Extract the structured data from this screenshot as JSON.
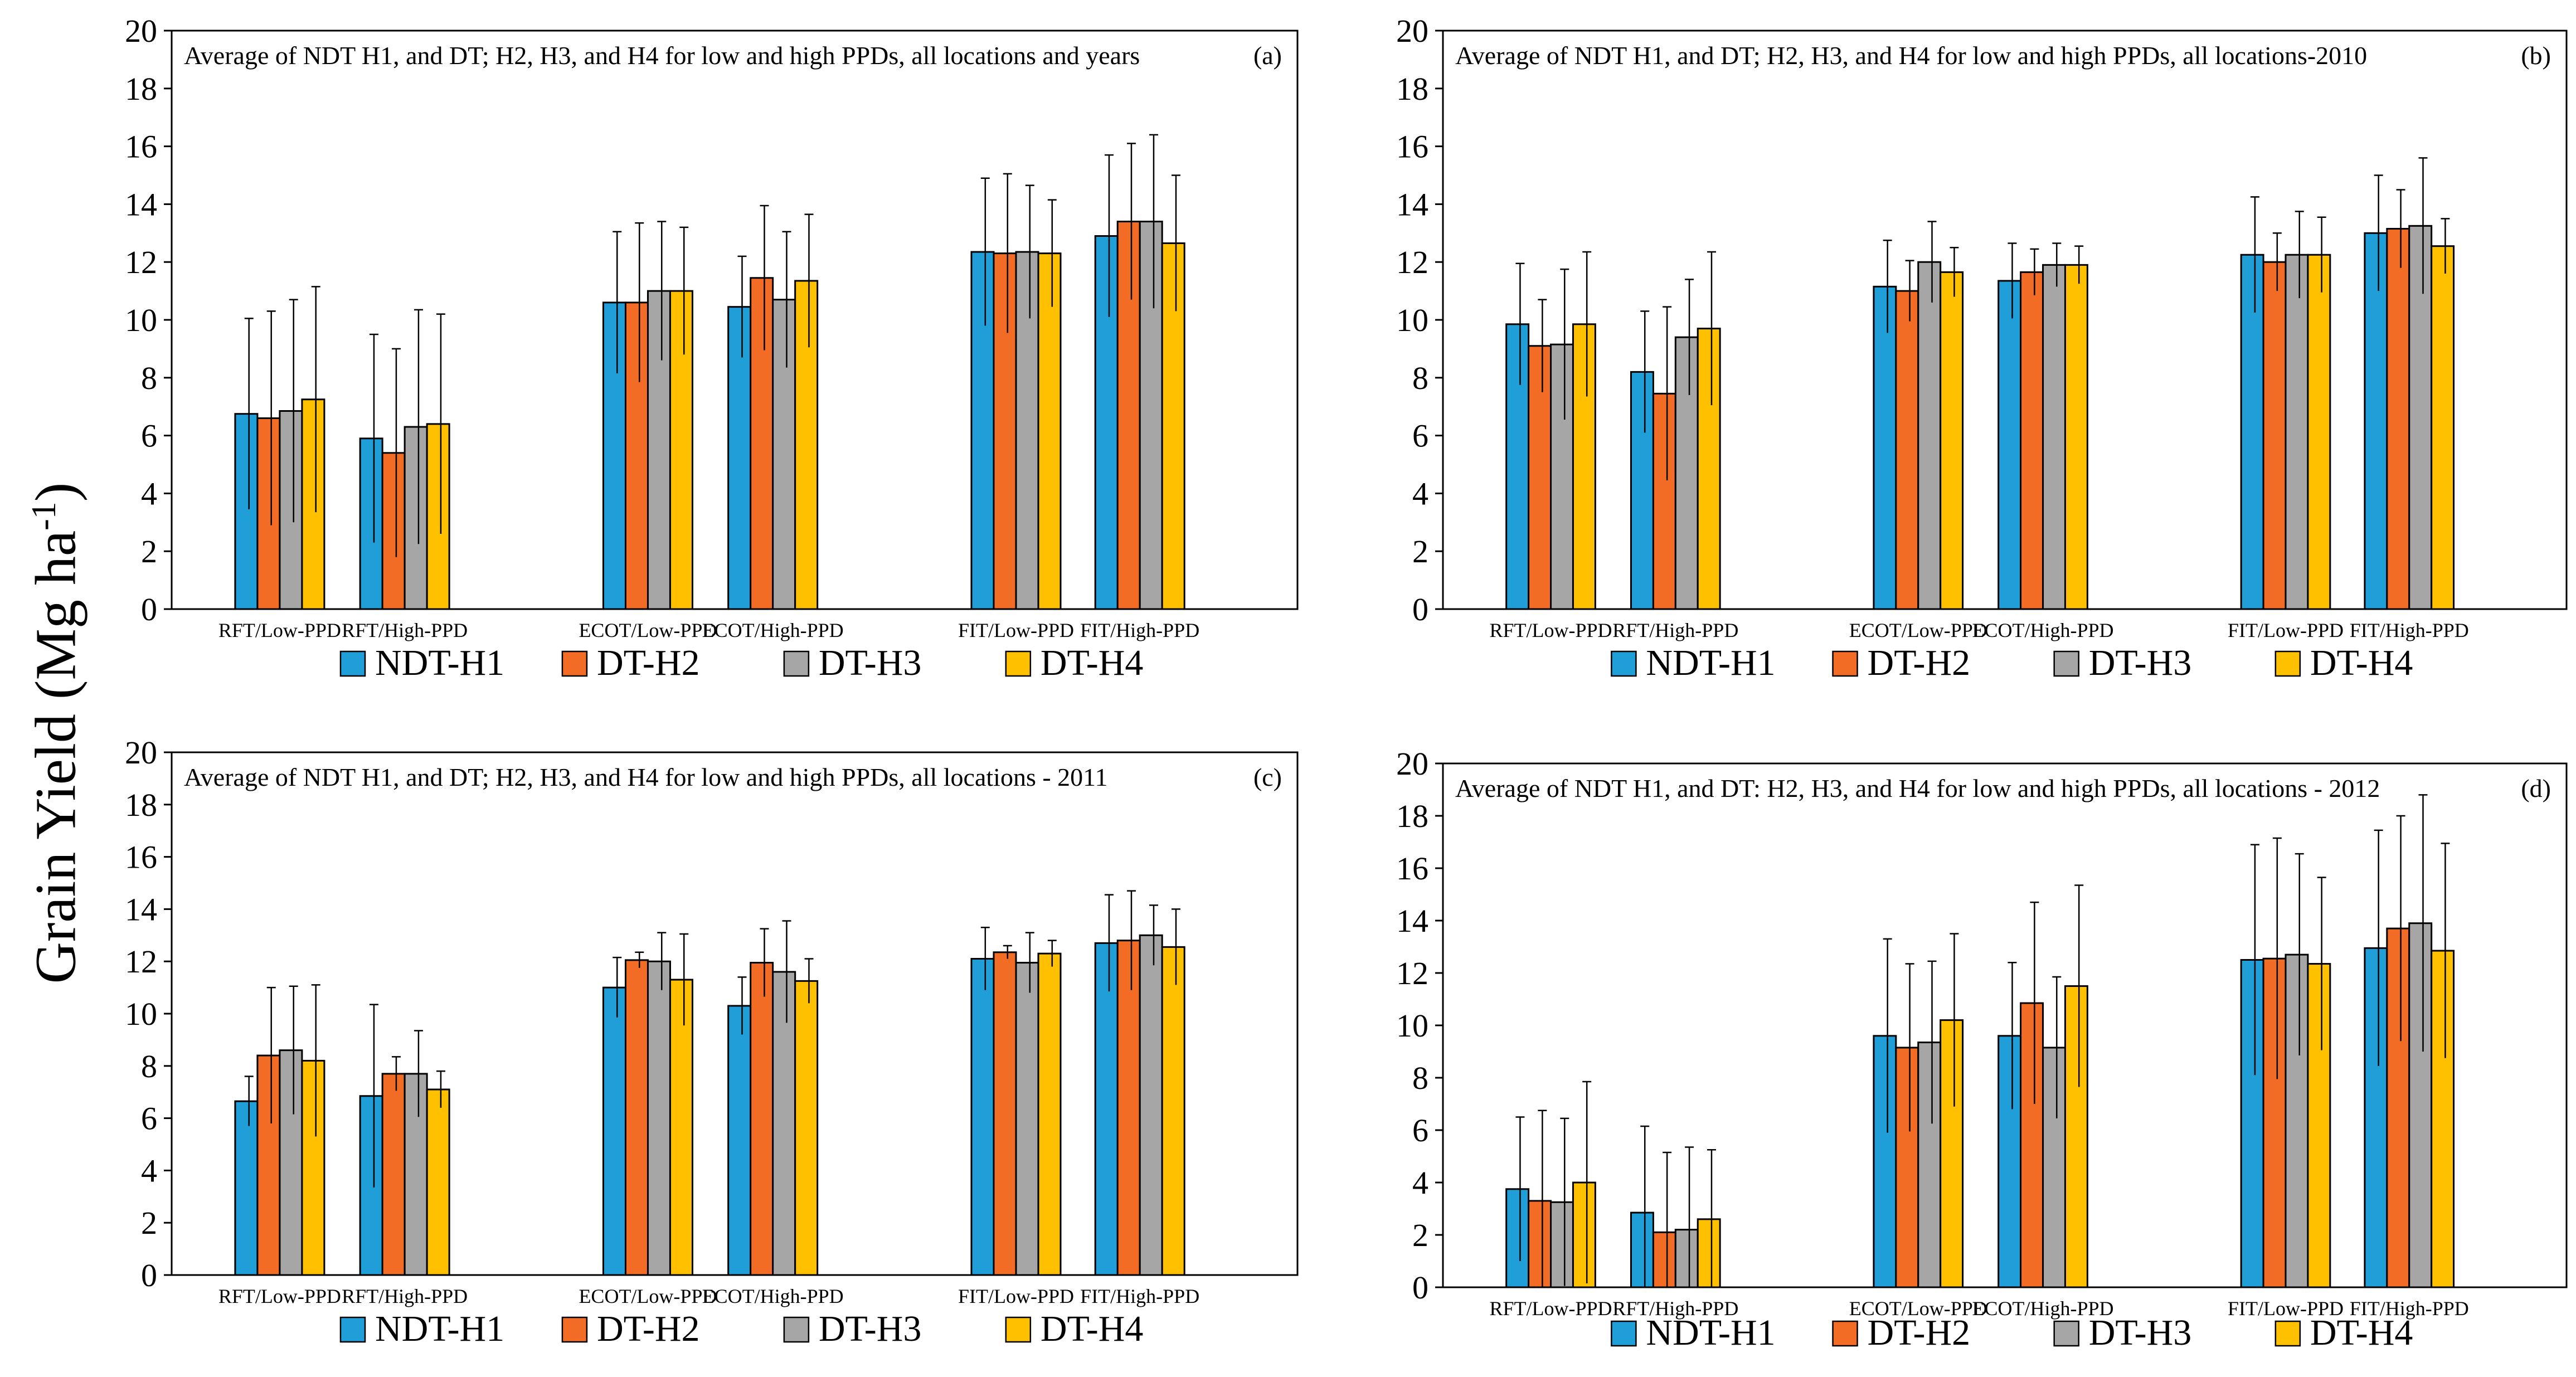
{
  "y_axis_label": {
    "text": "Grain Yield (Mg ha",
    "sup": "-1",
    "close": ")"
  },
  "chart_data": [
    {
      "type": "bar",
      "title": "Average of NDT H1, and DT; H2, H3, and H4 for low and high PPDs, all locations and years",
      "panel_tag": "(a)",
      "xlabel": "",
      "ylabel": "Grain Yield (Mg ha-1)",
      "ylim": [
        0,
        20
      ],
      "y_ticks": [
        0,
        2,
        4,
        6,
        8,
        10,
        12,
        14,
        16,
        18,
        20
      ],
      "categories": [
        "RFT/Low-PPD",
        "RFT/High-PPD",
        "ECOT/Low-PPD",
        "ECOT/High-PPD",
        "FIT/Low-PPD",
        "FIT/High-PPD"
      ],
      "series": [
        {
          "name": "NDT-H1",
          "color": "#1F9ED8",
          "values": [
            6.75,
            5.9,
            10.6,
            10.45,
            12.35,
            12.9
          ],
          "errors": [
            3.3,
            3.6,
            2.45,
            1.75,
            2.55,
            2.8
          ]
        },
        {
          "name": "DT-H2",
          "color": "#F26C25",
          "values": [
            6.6,
            5.4,
            10.6,
            11.45,
            12.3,
            13.4
          ],
          "errors": [
            3.7,
            3.6,
            2.75,
            2.5,
            2.75,
            2.7
          ]
        },
        {
          "name": "DT-H3",
          "color": "#A6A6A6",
          "values": [
            6.85,
            6.3,
            11.0,
            10.7,
            12.35,
            13.4
          ],
          "errors": [
            3.85,
            4.05,
            2.4,
            2.35,
            2.3,
            3.0
          ]
        },
        {
          "name": "DT-H4",
          "color": "#FFC000",
          "values": [
            7.25,
            6.4,
            11.0,
            11.35,
            12.3,
            12.65
          ],
          "errors": [
            3.9,
            3.8,
            2.2,
            2.3,
            1.85,
            2.35
          ]
        }
      ],
      "grid": false,
      "legend": "bottom"
    },
    {
      "type": "bar",
      "title": "Average of NDT H1, and DT; H2, H3, and H4 for low and high PPDs, all locations-2010",
      "panel_tag": "(b)",
      "xlabel": "",
      "ylabel": "Grain Yield (Mg ha-1)",
      "ylim": [
        0,
        20
      ],
      "y_ticks": [
        0,
        2,
        4,
        6,
        8,
        10,
        12,
        14,
        16,
        18,
        20
      ],
      "categories": [
        "RFT/Low-PPD",
        "RFT/High-PPD",
        "ECOT/Low-PPD",
        "ECOT/High-PPD",
        "FIT/Low-PPD",
        "FIT/High-PPD"
      ],
      "series": [
        {
          "name": "NDT-H1",
          "color": "#1F9ED8",
          "values": [
            9.85,
            8.2,
            11.15,
            11.35,
            12.25,
            13.0
          ],
          "errors": [
            2.1,
            2.1,
            1.6,
            1.3,
            2.0,
            2.0
          ]
        },
        {
          "name": "DT-H2",
          "color": "#F26C25",
          "values": [
            9.1,
            7.45,
            11.0,
            11.65,
            12.0,
            13.15
          ],
          "errors": [
            1.6,
            3.0,
            1.05,
            0.8,
            1.0,
            1.35
          ]
        },
        {
          "name": "DT-H3",
          "color": "#A6A6A6",
          "values": [
            9.15,
            9.4,
            12.0,
            11.9,
            12.25,
            13.25
          ],
          "errors": [
            2.6,
            2.0,
            1.4,
            0.75,
            1.5,
            2.35
          ]
        },
        {
          "name": "DT-H4",
          "color": "#FFC000",
          "values": [
            9.85,
            9.7,
            11.65,
            11.9,
            12.25,
            12.55
          ],
          "errors": [
            2.5,
            2.65,
            0.85,
            0.65,
            1.3,
            0.95
          ]
        }
      ],
      "grid": false,
      "legend": "bottom"
    },
    {
      "type": "bar",
      "title": "Average of NDT H1, and DT; H2, H3, and H4 for low and high PPDs, all locations - 2011",
      "panel_tag": "(c)",
      "xlabel": "",
      "ylabel": "Grain Yield (Mg ha-1)",
      "ylim": [
        0,
        20
      ],
      "y_ticks": [
        0,
        2,
        4,
        6,
        8,
        10,
        12,
        14,
        16,
        18,
        20
      ],
      "categories": [
        "RFT/Low-PPD",
        "RFT/High-PPD",
        "ECOT/Low-PPD",
        "ECOT/High-PPD",
        "FIT/Low-PPD",
        "FIT/High-PPD"
      ],
      "series": [
        {
          "name": "NDT-H1",
          "color": "#1F9ED8",
          "values": [
            6.65,
            6.85,
            11.0,
            10.3,
            12.1,
            12.7
          ],
          "errors": [
            0.95,
            3.5,
            1.15,
            1.1,
            1.2,
            1.85
          ]
        },
        {
          "name": "DT-H2",
          "color": "#F26C25",
          "values": [
            8.4,
            7.7,
            12.05,
            11.95,
            12.35,
            12.8
          ],
          "errors": [
            2.6,
            0.65,
            0.3,
            1.3,
            0.25,
            1.9
          ]
        },
        {
          "name": "DT-H3",
          "color": "#A6A6A6",
          "values": [
            8.6,
            7.7,
            12.0,
            11.6,
            11.95,
            13.0
          ],
          "errors": [
            2.45,
            1.65,
            1.1,
            1.95,
            1.15,
            1.15
          ]
        },
        {
          "name": "DT-H4",
          "color": "#FFC000",
          "values": [
            8.2,
            7.1,
            11.3,
            11.25,
            12.3,
            12.55
          ],
          "errors": [
            2.9,
            0.7,
            1.75,
            0.85,
            0.5,
            1.45
          ]
        }
      ],
      "grid": false,
      "legend": "bottom"
    },
    {
      "type": "bar",
      "title": "Average of NDT H1, and DT: H2, H3, and H4 for low and high PPDs, all locations - 2012",
      "panel_tag": "(d)",
      "xlabel": "",
      "ylabel": "Grain Yield (Mg ha-1)",
      "ylim": [
        0,
        20
      ],
      "y_ticks": [
        0,
        2,
        4,
        6,
        8,
        10,
        12,
        14,
        16,
        18,
        20
      ],
      "categories": [
        "RFT/Low-PPD",
        "RFT/High-PPD",
        "ECOT/Low-PPD",
        "ECOT/High-PPD",
        "FIT/Low-PPD",
        "FIT/High-PPD"
      ],
      "series": [
        {
          "name": "NDT-H1",
          "color": "#1F9ED8",
          "values": [
            3.75,
            2.85,
            9.6,
            9.6,
            12.5,
            12.95
          ],
          "errors": [
            2.75,
            3.3,
            3.7,
            2.8,
            4.4,
            4.5
          ]
        },
        {
          "name": "DT-H2",
          "color": "#F26C25",
          "values": [
            3.3,
            2.1,
            9.15,
            10.85,
            12.55,
            13.7
          ],
          "errors": [
            3.45,
            3.05,
            3.2,
            3.85,
            4.6,
            4.3
          ]
        },
        {
          "name": "DT-H3",
          "color": "#A6A6A6",
          "values": [
            3.25,
            2.2,
            9.35,
            9.15,
            12.7,
            13.9
          ],
          "errors": [
            3.2,
            3.15,
            3.1,
            2.7,
            3.85,
            4.9
          ]
        },
        {
          "name": "DT-H4",
          "color": "#FFC000",
          "values": [
            4.0,
            2.6,
            10.2,
            11.5,
            12.35,
            12.85
          ],
          "errors": [
            3.85,
            2.65,
            3.3,
            3.85,
            3.3,
            4.1
          ]
        }
      ],
      "grid": false,
      "legend": "bottom"
    }
  ]
}
